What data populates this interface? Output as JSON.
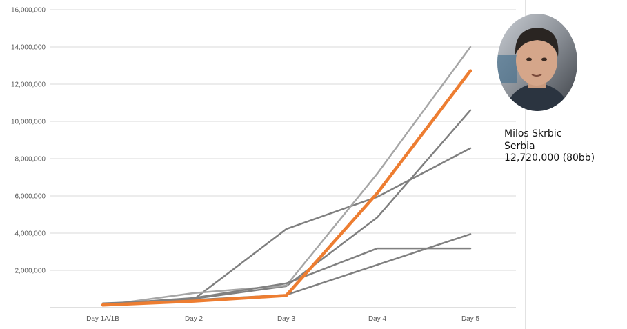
{
  "chart_data": {
    "type": "line",
    "categories": [
      "Day 1A/1B",
      "Day 2",
      "Day 3",
      "Day 4",
      "Day 5"
    ],
    "ylim": [
      0,
      16000000
    ],
    "yticks": [
      0,
      2000000,
      4000000,
      6000000,
      8000000,
      10000000,
      12000000,
      14000000,
      16000000
    ],
    "ytick_labels": [
      "-",
      "2,000,000",
      "4,000,000",
      "6,000,000",
      "8,000,000",
      "10,000,000",
      "12,000,000",
      "14,000,000",
      "16,000,000"
    ],
    "grid": true,
    "legend": "none",
    "series": [
      {
        "values": [
          150000,
          450000,
          4220000,
          5950000,
          8560000
        ],
        "color": "#7f7f7f"
      },
      {
        "values": [
          200000,
          480000,
          1150000,
          4850000,
          10600000
        ],
        "color": "#7f7f7f"
      },
      {
        "values": [
          120000,
          780000,
          1180000,
          7200000,
          14000000
        ],
        "color": "#a6a6a6"
      },
      {
        "values": [
          230000,
          420000,
          680000,
          2300000,
          3950000
        ],
        "color": "#7f7f7f"
      },
      {
        "values": [
          180000,
          520000,
          1300000,
          3180000,
          3180000
        ],
        "color": "#808080"
      },
      {
        "values": [
          140000,
          350000,
          650000,
          6150000,
          12720000
        ],
        "color": "#ed7d31",
        "highlight": true
      }
    ]
  },
  "player": {
    "name": "Milos Skrbic",
    "country": "Serbia",
    "stack": "12,720,000 (80bb)",
    "photo_icon": "player-portrait-icon"
  }
}
